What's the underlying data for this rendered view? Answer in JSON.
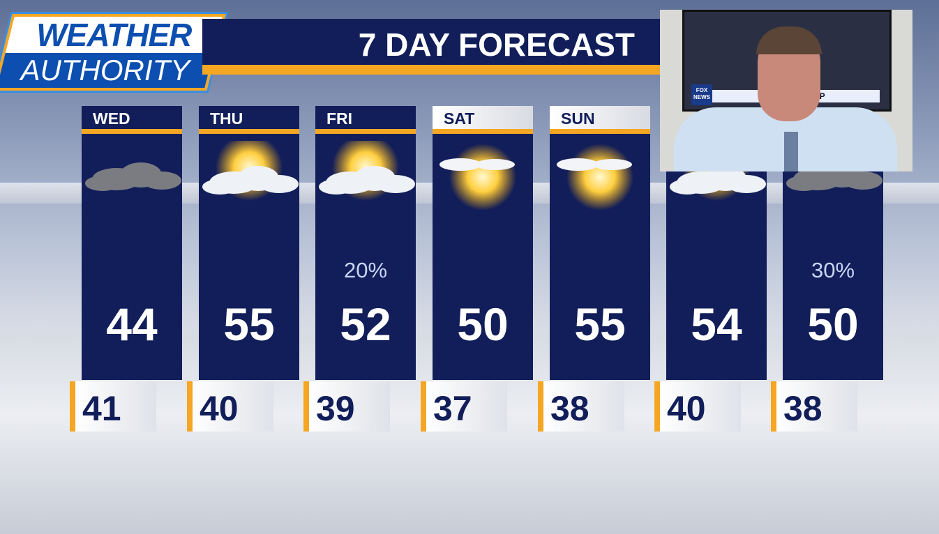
{
  "branding": {
    "logo_line1": "WEATHER",
    "logo_line2": "AUTHORITY",
    "accent": "#f5a623",
    "navy": "#121e5a"
  },
  "title": "7 DAY FORECAST",
  "days": [
    {
      "day": "WED",
      "icon": "cloudy-icon",
      "high": "44",
      "low": "41",
      "precip": ""
    },
    {
      "day": "THU",
      "icon": "partly-sunny-icon",
      "high": "55",
      "low": "40",
      "precip": ""
    },
    {
      "day": "FRI",
      "icon": "partly-sunny-icon",
      "high": "52",
      "low": "39",
      "precip": "20%"
    },
    {
      "day": "SAT",
      "icon": "mostly-sunny-icon",
      "high": "50",
      "low": "37",
      "precip": ""
    },
    {
      "day": "SUN",
      "icon": "mostly-sunny-icon",
      "high": "55",
      "low": "38",
      "precip": ""
    },
    {
      "day": "",
      "icon": "partly-sunny-icon",
      "high": "54",
      "low": "40",
      "precip": ""
    },
    {
      "day": "",
      "icon": "cloudy-icon",
      "high": "50",
      "low": "38",
      "precip": "30%"
    }
  ],
  "webcam": {
    "tv_headline": "THE ... TRUMP",
    "tv_network": "FOX NEWS"
  }
}
